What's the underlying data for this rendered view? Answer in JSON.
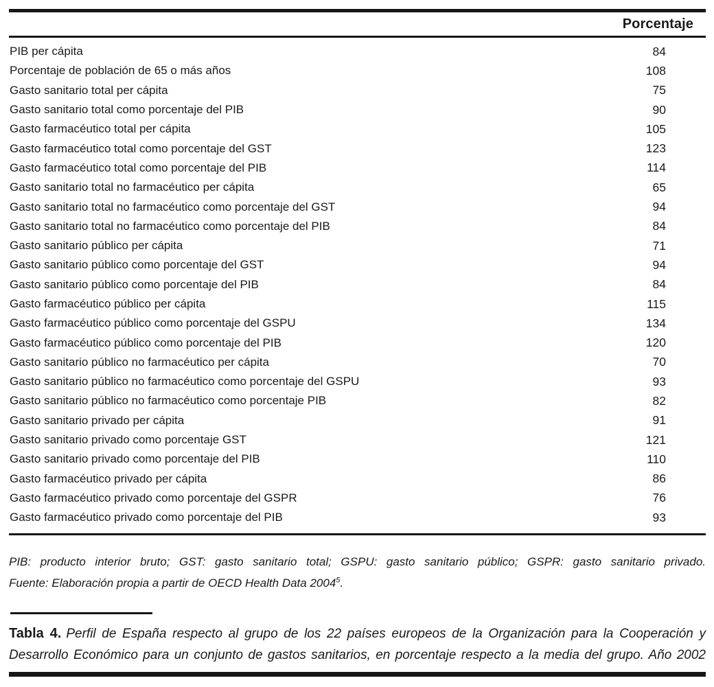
{
  "document": {
    "table": {
      "column_header": "Porcentaje",
      "rows": [
        {
          "label": "PIB per cápita",
          "value": "84"
        },
        {
          "label": "Porcentaje de población de 65 o más años",
          "value": "108"
        },
        {
          "label": "Gasto sanitario total per cápita",
          "value": "75"
        },
        {
          "label": "Gasto sanitario total como porcentaje del PIB",
          "value": "90"
        },
        {
          "label": "Gasto farmacéutico total per cápita",
          "value": "105"
        },
        {
          "label": "Gasto farmacéutico total como porcentaje del GST",
          "value": "123"
        },
        {
          "label": "Gasto farmacéutico total como porcentaje del PIB",
          "value": "114"
        },
        {
          "label": "Gasto sanitario total no farmacéutico per cápita",
          "value": "65"
        },
        {
          "label": "Gasto sanitario total no farmacéutico como porcentaje del GST",
          "value": "94"
        },
        {
          "label": "Gasto sanitario total no farmacéutico como porcentaje del PIB",
          "value": "84"
        },
        {
          "label": "Gasto sanitario público per cápita",
          "value": "71"
        },
        {
          "label": "Gasto sanitario público como porcentaje del GST",
          "value": "94"
        },
        {
          "label": "Gasto sanitario público como porcentaje del PIB",
          "value": "84"
        },
        {
          "label": "Gasto farmacéutico público per cápita",
          "value": "115"
        },
        {
          "label": "Gasto farmacéutico público como porcentaje del GSPU",
          "value": "134"
        },
        {
          "label": "Gasto farmacéutico público como porcentaje del PIB",
          "value": "120"
        },
        {
          "label": "Gasto sanitario público no farmacéutico per cápita",
          "value": "70"
        },
        {
          "label": "Gasto sanitario público no farmacéutico como porcentaje del GSPU",
          "value": "93"
        },
        {
          "label": "Gasto sanitario público no farmacéutico como porcentaje PIB",
          "value": "82"
        },
        {
          "label": "Gasto sanitario privado per cápita",
          "value": "91"
        },
        {
          "label": "Gasto sanitario privado como porcentaje GST",
          "value": "121"
        },
        {
          "label": "Gasto sanitario privado como porcentaje del PIB",
          "value": "110"
        },
        {
          "label": "Gasto farmacéutico privado per cápita",
          "value": "86"
        },
        {
          "label": "Gasto farmacéutico privado como porcentaje del GSPR",
          "value": "76"
        },
        {
          "label": "Gasto farmacéutico privado como porcentaje del PIB",
          "value": "93"
        }
      ]
    },
    "notes": {
      "abbreviations": "PIB: producto interior bruto; GST: gasto sanitario total; GSPU: gasto sanitario público; GSPR: gasto sanitario privado.",
      "source_text": "Fuente: Elaboración propia a partir de OECD Health Data 2004",
      "source_superscript": "5",
      "source_period": "."
    },
    "caption": {
      "label": "Tabla 4.",
      "text": "Perfil de España respecto al grupo de los 22 países europeos de la Organización para la Cooperación y Desarrollo Económico para un conjunto de gastos sanitarios, en porcentaje respecto a la media del grupo. Año 2002"
    },
    "colors": {
      "rule": "#161616",
      "text": "#1a1a1a",
      "background": "#ffffff"
    }
  }
}
